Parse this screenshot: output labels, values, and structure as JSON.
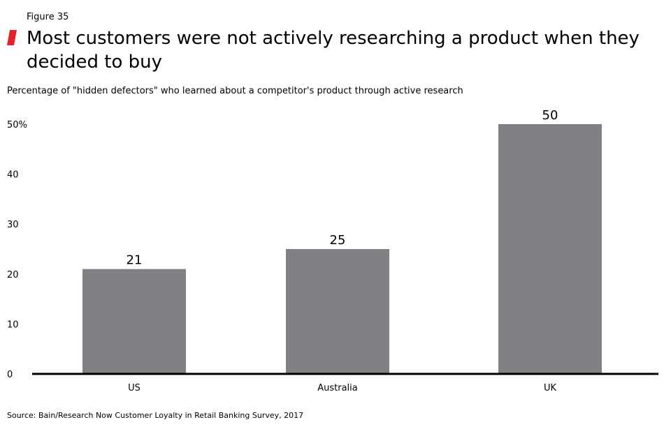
{
  "header": {
    "figure_label": "Figure 35",
    "title": "Most customers were not actively researching a product when they decided to buy",
    "subtitle": "Percentage of \"hidden defectors\" who learned about a competitor's product through active research"
  },
  "footer": {
    "source": "Source: Bain/Research Now Customer Loyalty in Retail Banking Survey, 2017"
  },
  "colors": {
    "accent": "#e8202a",
    "bar": "#808184",
    "axis": "#000000"
  },
  "chart_data": {
    "type": "bar",
    "title": "Most customers were not actively researching a product when they decided to buy",
    "subtitle": "Percentage of \"hidden defectors\" who learned about a competitor's product through active research",
    "categories": [
      "US",
      "Australia",
      "UK"
    ],
    "values": [
      21,
      25,
      50
    ],
    "data_labels": [
      "21",
      "25",
      "50"
    ],
    "ylim": [
      0,
      50
    ],
    "yticks": [
      0,
      10,
      20,
      30,
      40,
      50
    ],
    "ytick_labels": [
      "0",
      "10",
      "20",
      "30",
      "40",
      "50%"
    ],
    "xlabel": "",
    "ylabel": "",
    "grid": false,
    "legend": "none"
  }
}
